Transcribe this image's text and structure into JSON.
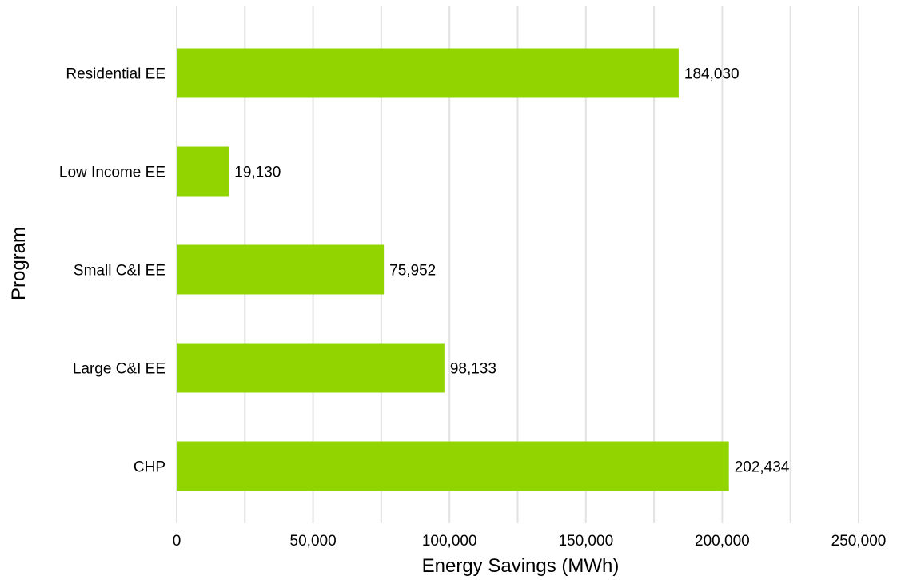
{
  "chart_data": {
    "type": "bar",
    "orientation": "horizontal",
    "categories": [
      "Residential EE",
      "Low Income EE",
      "Small C&I EE",
      "Large C&I EE",
      "CHP"
    ],
    "values": [
      184030,
      19130,
      75952,
      98133,
      202434
    ],
    "value_labels": [
      "184,030",
      "19,130",
      "75,952",
      "98,133",
      "202,434"
    ],
    "xlabel": "Energy Savings (MWh)",
    "ylabel": "Program",
    "xlim": [
      0,
      250000
    ],
    "x_ticks": [
      0,
      50000,
      100000,
      150000,
      200000,
      250000
    ],
    "x_tick_labels": [
      "0",
      "50,000",
      "100,000",
      "150,000",
      "200,000",
      "250,000"
    ],
    "grid": "vertical",
    "legend": "none",
    "bar_color": "#92d400",
    "grid_color": "#e2e2e2"
  }
}
